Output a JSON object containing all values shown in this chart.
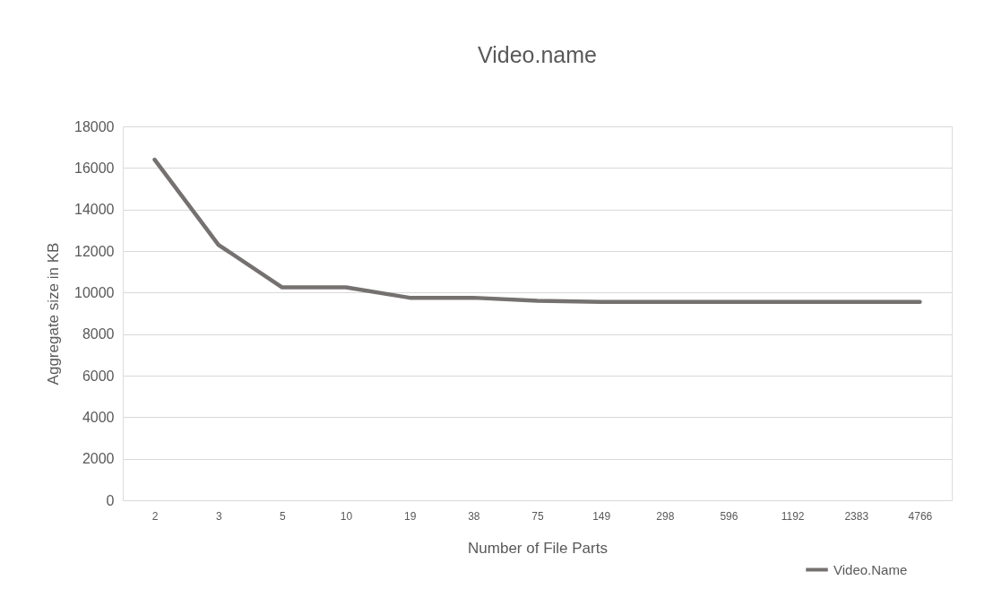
{
  "chart_data": {
    "type": "line",
    "title": "Video.name",
    "xlabel": "Number of File Parts",
    "ylabel": "Aggregate size in KB",
    "categories": [
      "2",
      "3",
      "5",
      "10",
      "19",
      "38",
      "75",
      "149",
      "298",
      "596",
      "1192",
      "2383",
      "4766"
    ],
    "series": [
      {
        "name": "Video.Name",
        "color": "#767171",
        "values": [
          16400,
          12300,
          10250,
          10250,
          9750,
          9750,
          9600,
          9550,
          9550,
          9550,
          9550,
          9550,
          9550
        ]
      }
    ],
    "ylim": [
      0,
      18000
    ],
    "yticks": [
      0,
      2000,
      4000,
      6000,
      8000,
      10000,
      12000,
      14000,
      16000,
      18000
    ],
    "grid": "y",
    "legend": "bottom right",
    "marker": "none",
    "line_style": "solid"
  }
}
